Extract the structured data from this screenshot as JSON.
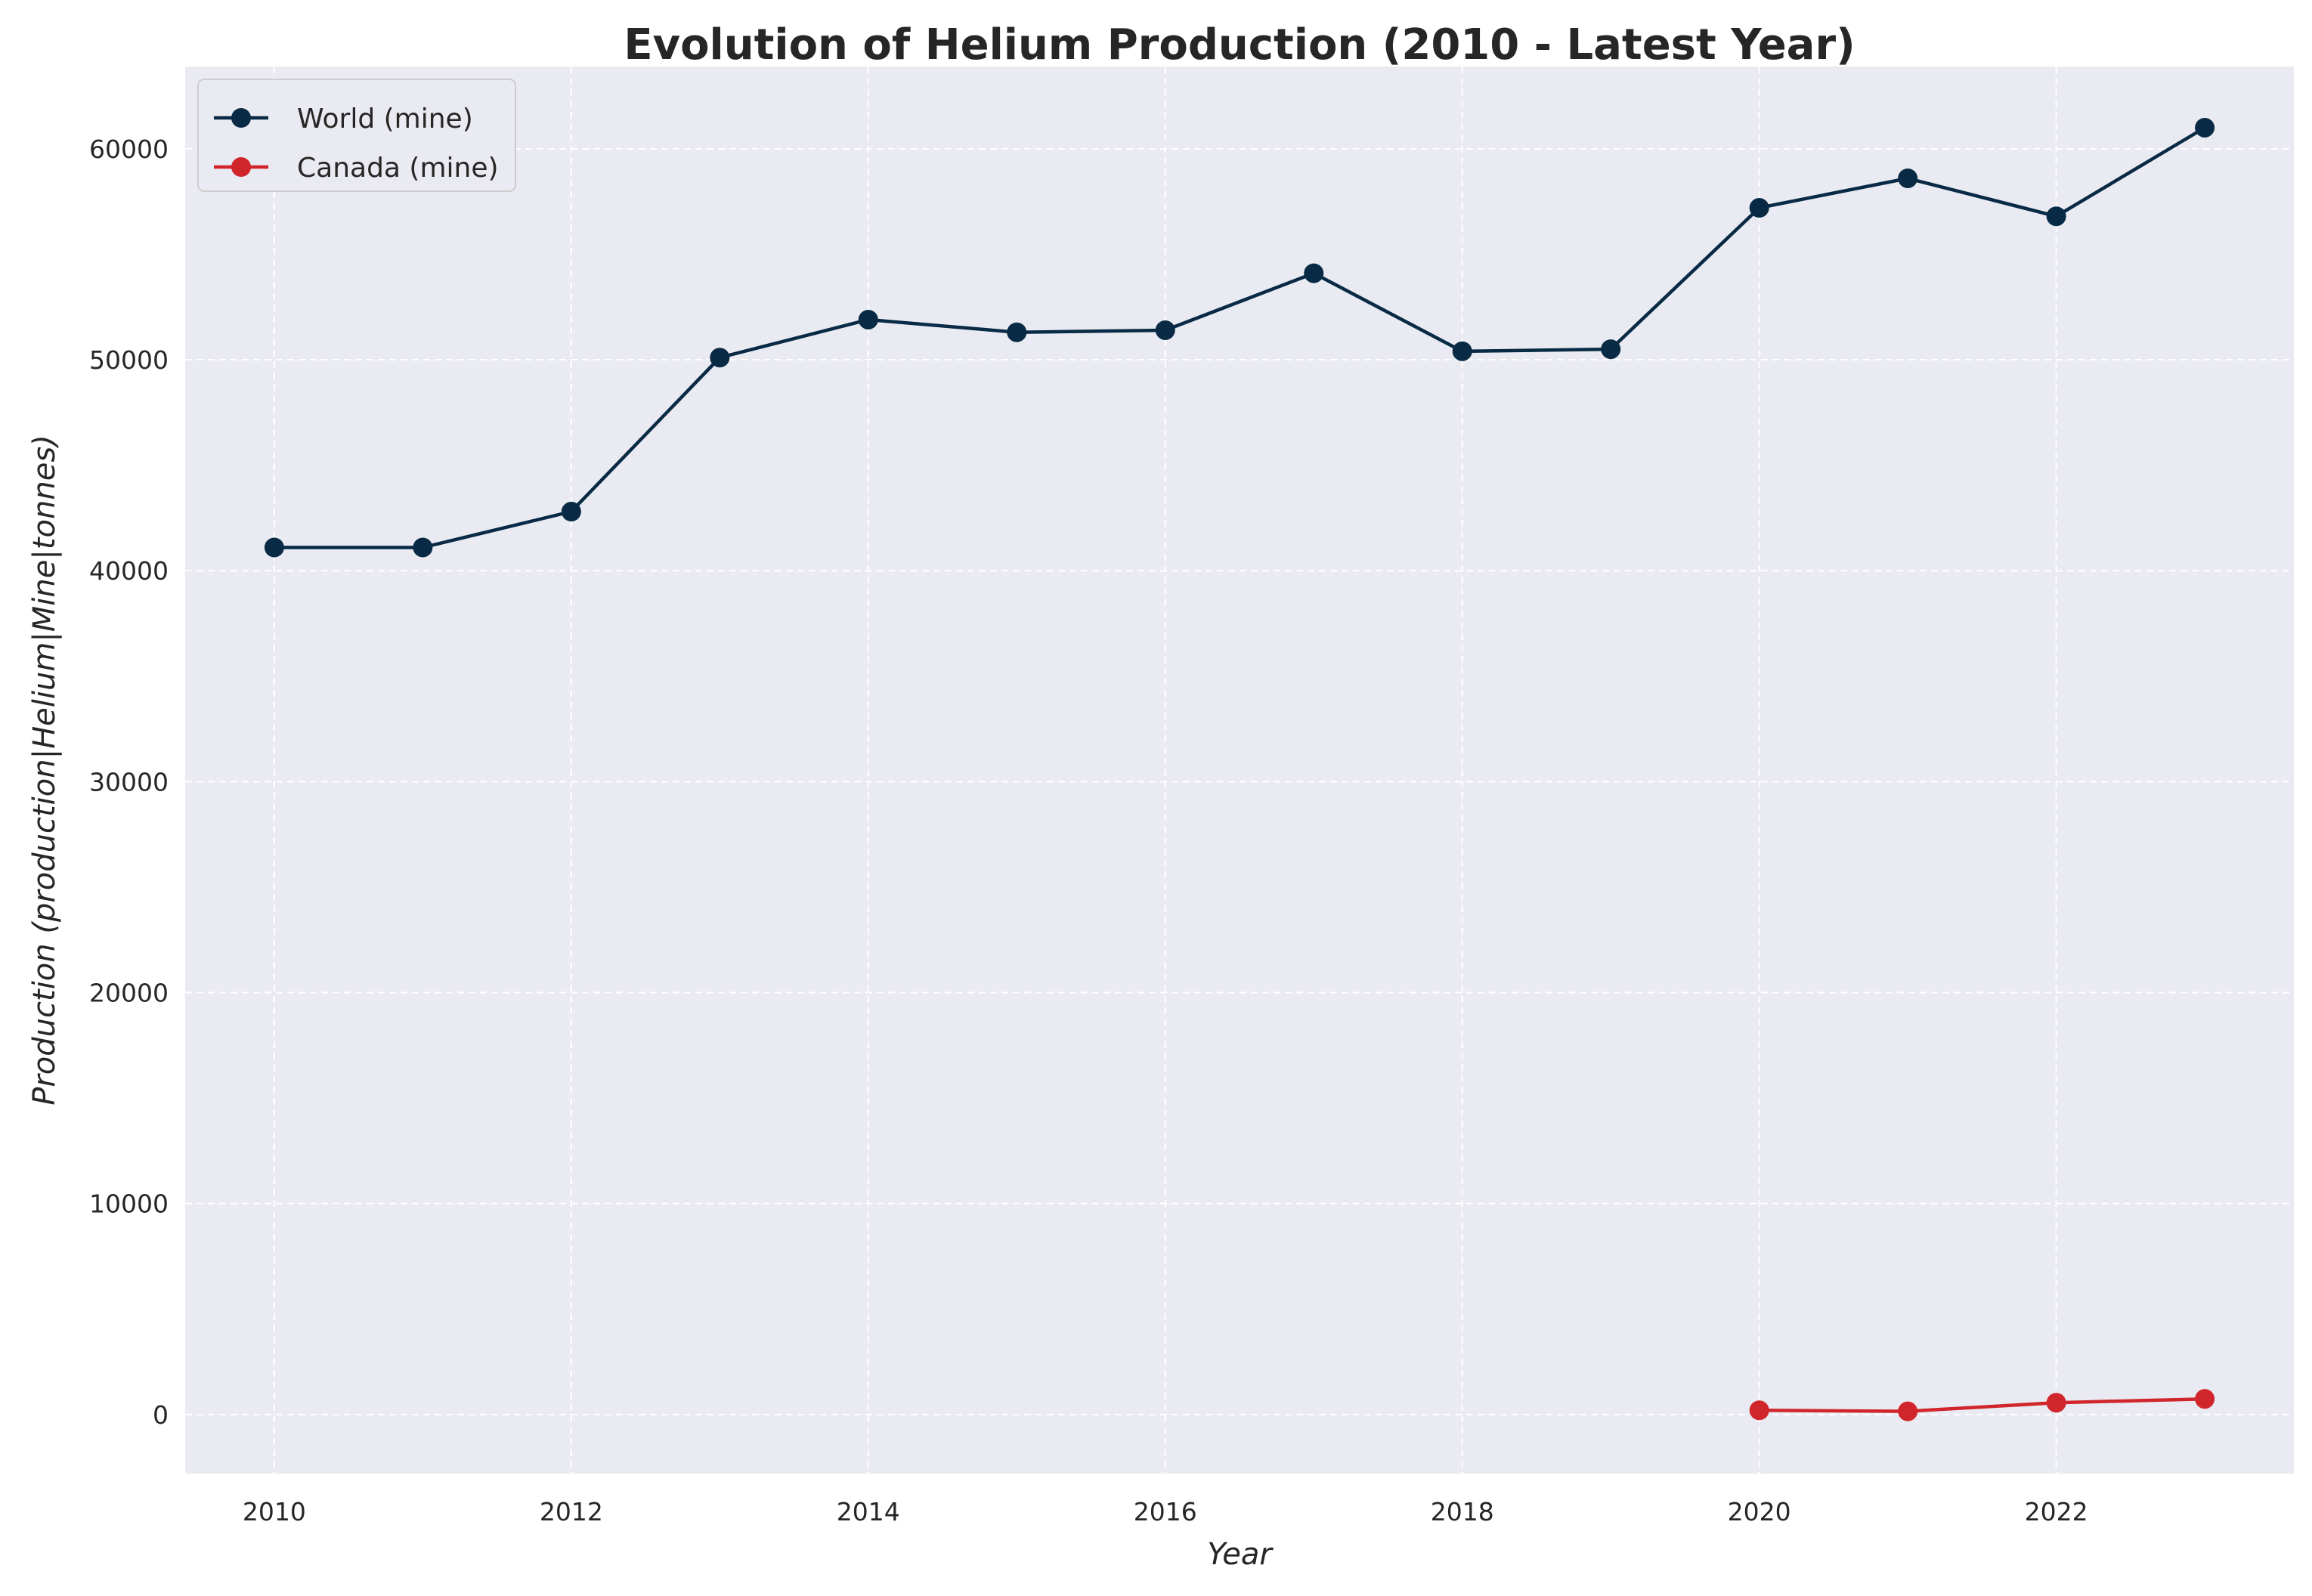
{
  "chart_data": {
    "type": "line",
    "title": "Evolution of Helium Production (2010 - Latest Year)",
    "xlabel": "Year",
    "ylabel": "Production (production|Helium|Mine|tonnes)",
    "xlim": [
      2009.4,
      2023.6
    ],
    "ylim": [
      -2800,
      63900
    ],
    "xticks": [
      2010,
      2012,
      2014,
      2016,
      2018,
      2020,
      2022
    ],
    "yticks": [
      0,
      10000,
      20000,
      30000,
      40000,
      50000,
      60000
    ],
    "grid": true,
    "legend_position": "top-left",
    "background": "#eaeaf2",
    "series": [
      {
        "name": "World (mine)",
        "color": "#082a44",
        "x": [
          2010,
          2011,
          2012,
          2013,
          2014,
          2015,
          2016,
          2017,
          2018,
          2019,
          2020,
          2021,
          2022,
          2023
        ],
        "values": [
          41100,
          41100,
          42800,
          50100,
          51900,
          51300,
          51400,
          54100,
          50400,
          50500,
          57200,
          58600,
          56800,
          61000
        ]
      },
      {
        "name": "Canada (mine)",
        "color": "#d0262b",
        "x": [
          2020,
          2021,
          2022,
          2023
        ],
        "values": [
          200,
          150,
          560,
          740
        ]
      }
    ]
  }
}
